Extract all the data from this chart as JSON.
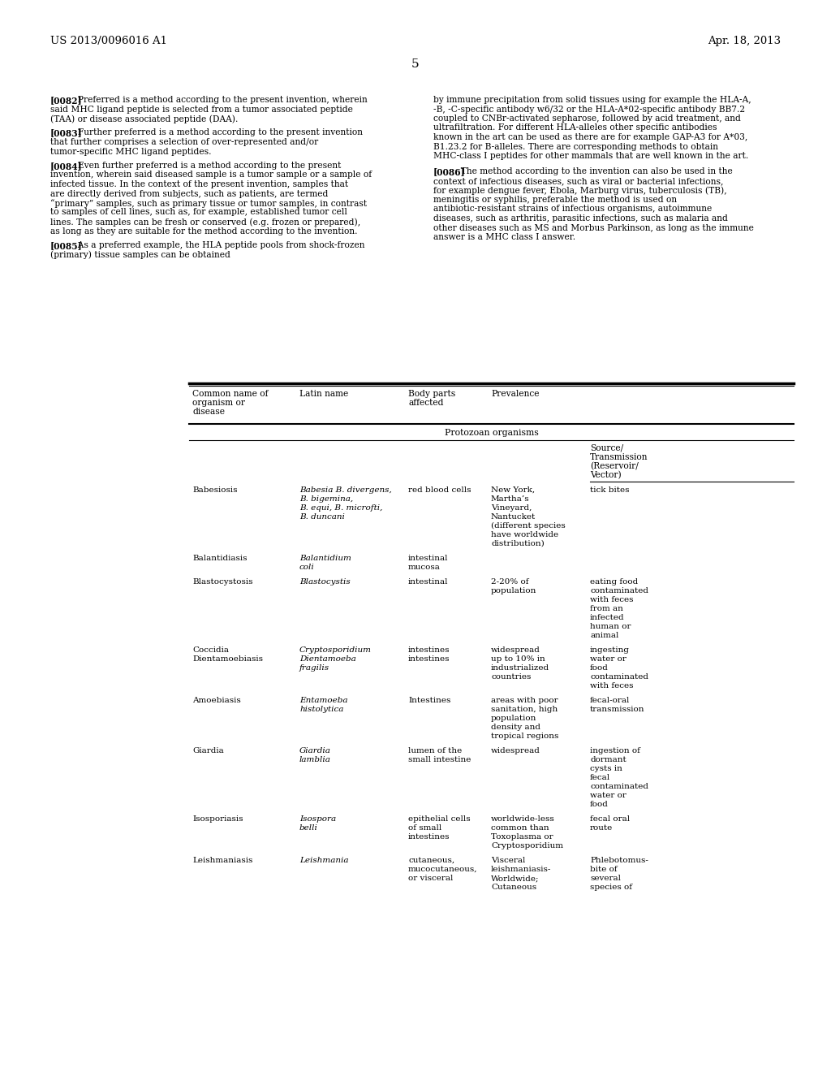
{
  "header_left": "US 2013/0096016 A1",
  "header_right": "Apr. 18, 2013",
  "page_number": "5",
  "background_color": "#ffffff",
  "left_col_paragraphs": [
    {
      "tag": "[0082]",
      "text": "Preferred is a method according to the present invention, wherein said MHC ligand peptide is selected from a tumor associated peptide (TAA) or disease associated peptide (DAA)."
    },
    {
      "tag": "[0083]",
      "text": "Further preferred is a method according to the present invention that further comprises a selection of over-represented and/or tumor-specific MHC ligand peptides."
    },
    {
      "tag": "[0084]",
      "text": "Even further preferred is a method according to the present invention, wherein said diseased sample is a tumor sample or a sample of infected tissue. In the context of the present invention, samples that are directly derived from subjects, such as patients, are termed “primary” samples, such as primary tissue or tumor samples, in contrast to samples of cell lines, such as, for example, established tumor cell lines. The samples can be fresh or conserved (e.g. frozen or prepared), as long as they are suitable for the method according to the invention."
    },
    {
      "tag": "[0085]",
      "text": "As a preferred example, the HLA peptide pools from shock-frozen (primary) tissue samples can be obtained"
    }
  ],
  "right_col_paragraphs": [
    {
      "tag": "",
      "text": "by immune precipitation from solid tissues using for example the HLA-A, -B, -C-specific antibody w6/32 or the HLA-A*02-specific antibody BB7.2 coupled to CNBr-activated sepharose, followed by acid treatment, and ultrafiltration. For different HLA-alleles other specific antibodies known in the art can be used as there are for example GAP-A3 for A*03, B1.23.2 for B-alleles. There are corresponding methods to obtain MHC-class I peptides for other mammals that are well known in the art."
    },
    {
      "tag": "[0086]",
      "text": "The method according to the invention can also be used in the context of infectious diseases, such as viral or bacterial infections, for example dengue fever, Ebola, Marburg virus, tuberculosis (TB), meningitis or syphilis, preferable the method is used on antibiotic-resistant strains of infectious organisms, autoimmune diseases, such as arthritis, parasitic infections, such as malaria and other diseases such as MS and Morbus Parkinson, as long as the immune answer is a MHC class I answer."
    }
  ],
  "table_section_header": "Protozoan organisms",
  "table_subheader": "Source/\nTransmission\n(Reservoir/\nVector)",
  "table_col_headers": [
    "Common name of\norganism or\ndisease",
    "Latin name",
    "Body parts\naffected",
    "Prevalence",
    ""
  ],
  "table_rows": [
    {
      "name": "Babesiosis",
      "latin": "Babesia B. divergens,\nB. bigemina,\nB. equi, B. microfti,\nB. duncani",
      "body": "red blood cells",
      "prevalence": "New York,\nMartha’s\nVineyard,\nNantucket\n(different species\nhave worldwide\ndistribution)",
      "source": "tick bites"
    },
    {
      "name": "Balantidiasis",
      "latin": "Balantidium\ncoli",
      "body": "intestinal\nmucosa",
      "prevalence": "",
      "source": ""
    },
    {
      "name": "Blastocystosis",
      "latin": "Blastocystis",
      "body": "intestinal",
      "prevalence": "2-20% of\npopulation",
      "source": "eating food\ncontaminated\nwith feces\nfrom an\ninfected\nhuman or\nanimal"
    },
    {
      "name": "Coccidia\nDientamoebiasis",
      "latin": "Cryptosporidium\nDientamoeba\nfragilis",
      "body": "intestines\nintestines",
      "prevalence": "widespread\nup to 10% in\nindustrialized\ncountries",
      "source": "ingesting\nwater or\nfood\ncontaminated\nwith feces"
    },
    {
      "name": "Amoebiasis",
      "latin": "Entamoeba\nhistolytica",
      "body": "Intestines",
      "prevalence": "areas with poor\nsanitation, high\npopulation\ndensity and\ntropical regions",
      "source": "fecal-oral\ntransmission"
    },
    {
      "name": "Giardia",
      "latin": "Giardia\nlamblia",
      "body": "lumen of the\nsmall intestine",
      "prevalence": "widespread",
      "source": "ingestion of\ndormant\ncysts in\nfecal\ncontaminated\nwater or\nfood"
    },
    {
      "name": "Isosporiasis",
      "latin": "Isospora\nbelli",
      "body": "epithelial cells\nof small\nintestines",
      "prevalence": "worldwide-less\ncommon than\nToxoplasma or\nCryptosporidium",
      "source": "fecal oral\nroute"
    },
    {
      "name": "Leishmaniasis",
      "latin": "Leishmania",
      "body": "cutaneous,\nmucocutaneous,\nor visceral",
      "prevalence": "Visceral\nleishmaniasis-\nWorldwide;\nCutaneous",
      "source": "Phlebotomus-\nbite of\nseveral\nspecies of"
    }
  ]
}
